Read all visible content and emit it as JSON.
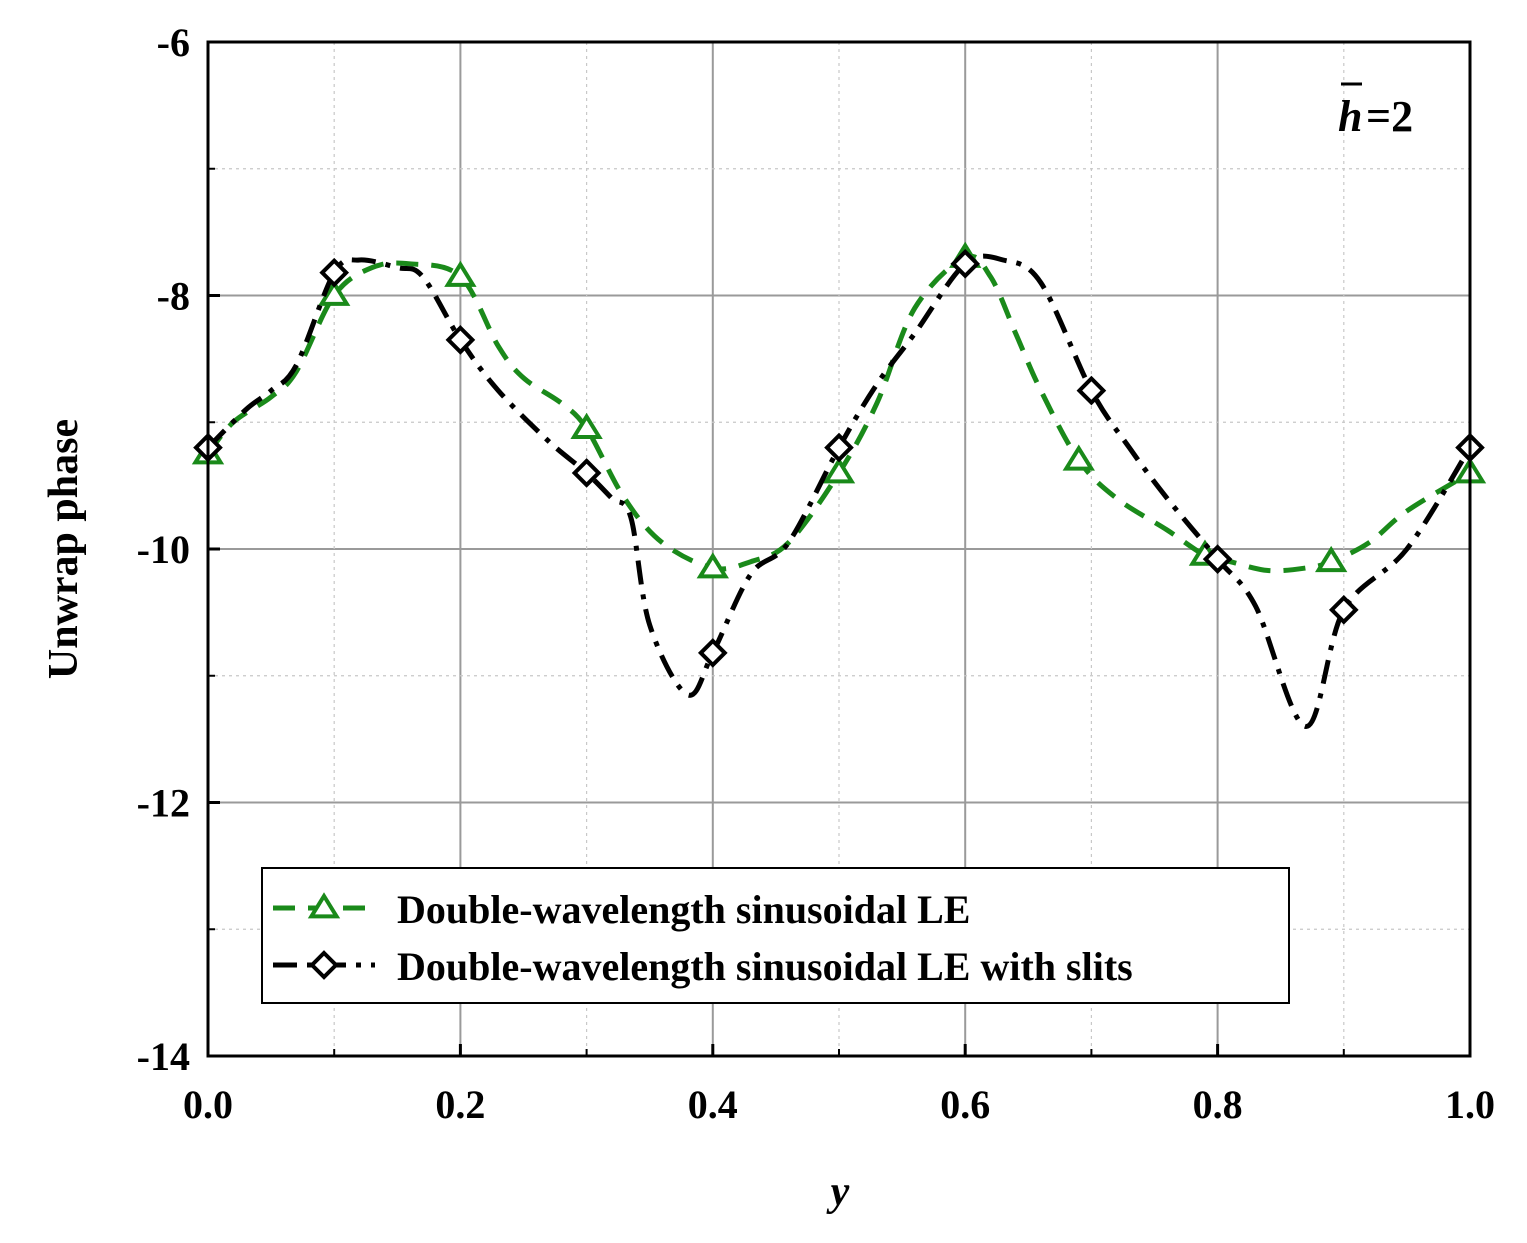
{
  "chart_data": {
    "type": "line",
    "title": "",
    "xlabel": "y",
    "ylabel": "Unwrap phase",
    "xlim": [
      0.0,
      1.0
    ],
    "ylim": [
      -14,
      -6
    ],
    "xticks": [
      0.0,
      0.2,
      0.4,
      0.6,
      0.8,
      1.0
    ],
    "xtick_labels": [
      "0.0",
      "0.2",
      "0.4",
      "0.6",
      "0.8",
      "1.0"
    ],
    "yticks": [
      -14,
      -12,
      -10,
      -8,
      -6
    ],
    "ytick_labels": [
      "-14",
      "-12",
      "-10",
      "-8",
      "-6"
    ],
    "grid": true,
    "legend_position": "bottom-left",
    "annotation": {
      "symbol": "h",
      "rest": "=2"
    },
    "series": [
      {
        "name": "Double-wavelength sinusoidal LE",
        "color": "#1a8a1a",
        "line_style": "dash",
        "marker": "triangle",
        "x": [
          0.0,
          0.02,
          0.05,
          0.07,
          0.1,
          0.13,
          0.16,
          0.2,
          0.23,
          0.25,
          0.28,
          0.3,
          0.33,
          0.36,
          0.4,
          0.43,
          0.46,
          0.5,
          0.53,
          0.56,
          0.6,
          0.62,
          0.64,
          0.66,
          0.69,
          0.72,
          0.76,
          0.79,
          0.81,
          0.84,
          0.87,
          0.89,
          0.92,
          0.95,
          1.0
        ],
        "y": [
          -9.25,
          -9.0,
          -8.8,
          -8.6,
          -8.0,
          -7.78,
          -7.75,
          -7.85,
          -8.4,
          -8.65,
          -8.85,
          -9.05,
          -9.6,
          -9.95,
          -10.15,
          -10.1,
          -9.95,
          -9.4,
          -8.85,
          -8.1,
          -7.7,
          -7.85,
          -8.3,
          -8.75,
          -9.3,
          -9.6,
          -9.85,
          -10.05,
          -10.1,
          -10.17,
          -10.15,
          -10.1,
          -9.95,
          -9.7,
          -9.4
        ],
        "marker_x": [
          0.0,
          0.1,
          0.2,
          0.3,
          0.4,
          0.5,
          0.6,
          0.69,
          0.79,
          0.89,
          1.0
        ],
        "marker_y": [
          -9.25,
          -8.0,
          -7.85,
          -9.05,
          -10.15,
          -9.4,
          -7.7,
          -9.3,
          -10.05,
          -10.1,
          -9.4
        ]
      },
      {
        "name": "Double-wavelength sinusoidal LE with slits",
        "color": "#000000",
        "line_style": "dashdot",
        "marker": "diamond",
        "x": [
          0.0,
          0.03,
          0.05,
          0.07,
          0.1,
          0.12,
          0.15,
          0.17,
          0.2,
          0.23,
          0.27,
          0.3,
          0.32,
          0.335,
          0.35,
          0.38,
          0.4,
          0.43,
          0.46,
          0.5,
          0.53,
          0.56,
          0.6,
          0.63,
          0.66,
          0.7,
          0.73,
          0.76,
          0.8,
          0.83,
          0.87,
          0.9,
          0.95,
          1.0
        ],
        "y": [
          -9.2,
          -8.9,
          -8.75,
          -8.55,
          -7.82,
          -7.72,
          -7.78,
          -7.85,
          -8.35,
          -8.75,
          -9.15,
          -9.4,
          -9.6,
          -9.75,
          -10.6,
          -11.15,
          -10.82,
          -10.2,
          -9.95,
          -9.2,
          -8.7,
          -8.3,
          -7.75,
          -7.72,
          -7.9,
          -8.75,
          -9.2,
          -9.6,
          -10.08,
          -10.45,
          -11.4,
          -10.48,
          -10.0,
          -9.2
        ],
        "marker_x": [
          0.0,
          0.1,
          0.2,
          0.3,
          0.4,
          0.5,
          0.6,
          0.7,
          0.8,
          0.9,
          1.0
        ],
        "marker_y": [
          -9.2,
          -7.82,
          -8.35,
          -9.4,
          -10.82,
          -9.2,
          -7.75,
          -8.75,
          -10.08,
          -10.48,
          -9.2
        ]
      }
    ]
  }
}
